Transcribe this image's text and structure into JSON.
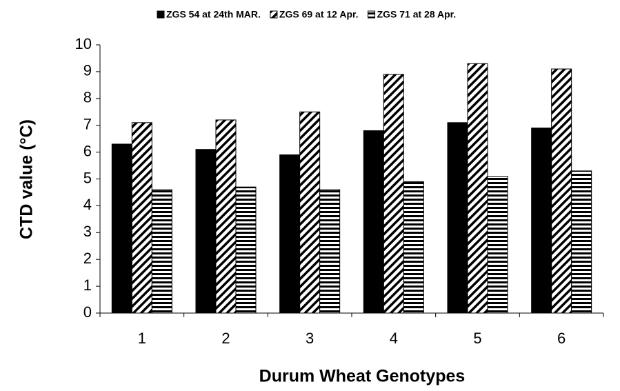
{
  "chart_data": {
    "type": "bar",
    "x_label": "Durum Wheat Genotypes",
    "y_label": "CTD value (°C)",
    "categories": [
      "1",
      "2",
      "3",
      "4",
      "5",
      "6"
    ],
    "series": [
      {
        "name": "ZGS 54 at 24th MAR.",
        "color": "#000000",
        "pattern": "solid",
        "values": [
          6.3,
          6.1,
          5.9,
          6.8,
          7.1,
          6.9
        ]
      },
      {
        "name": "ZGS 69 at 12 Apr.",
        "color": "#000000",
        "pattern": "diagonal",
        "values": [
          7.1,
          7.2,
          7.5,
          8.9,
          9.3,
          9.1
        ]
      },
      {
        "name": "ZGS 71 at 28 Apr.",
        "color": "#000000",
        "pattern": "horizontal",
        "values": [
          4.6,
          4.7,
          4.6,
          4.9,
          5.1,
          5.3
        ]
      }
    ],
    "ylim": [
      0,
      10
    ],
    "yticks": [
      0,
      1,
      2,
      3,
      4,
      5,
      6,
      7,
      8,
      9,
      10
    ],
    "grid": false,
    "legend": "top"
  }
}
